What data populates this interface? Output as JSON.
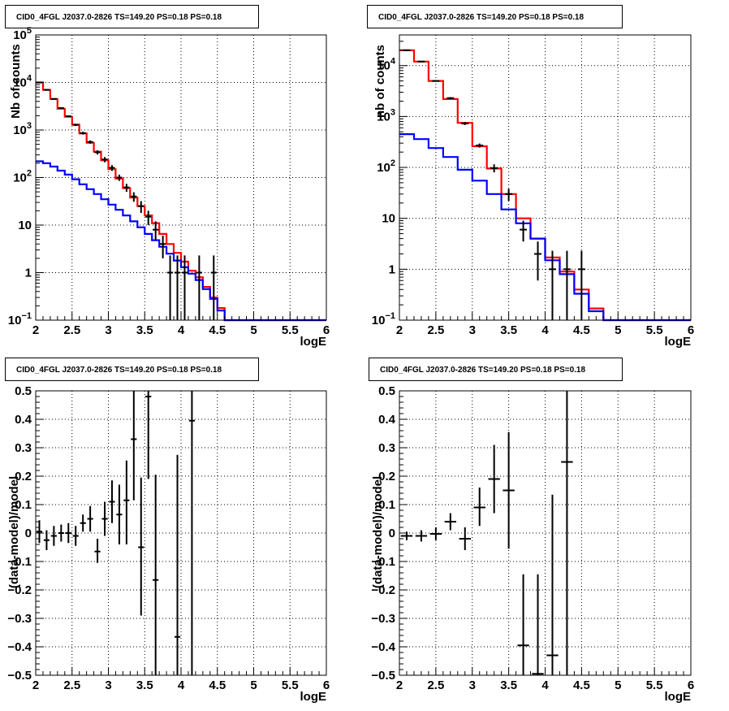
{
  "chart_data": [
    {
      "type": "histogram",
      "title": "CID0_4FGL J2037.0-2826 TS=149.20 PS=0.18 PS=0.18",
      "xlabel": "logE",
      "ylabel": "Nb of counts",
      "xlim": [
        2,
        6
      ],
      "ylim": [
        0.1,
        100000
      ],
      "yscale": "log",
      "grid": true,
      "x_ticks": [
        "2",
        "2.5",
        "3",
        "3.5",
        "4",
        "4.5",
        "5",
        "5.5",
        "6"
      ],
      "y_ticks": [
        {
          "v": 0.1,
          "base": "10",
          "exp": "−1"
        },
        {
          "v": 1,
          "label": "1"
        },
        {
          "v": 10,
          "label": "10"
        },
        {
          "v": 100,
          "base": "10",
          "exp": "2"
        },
        {
          "v": 1000,
          "base": "10",
          "exp": "3"
        },
        {
          "v": 10000,
          "base": "10",
          "exp": "4"
        },
        {
          "v": 100000,
          "base": "10",
          "exp": "5"
        }
      ],
      "bin_edges": [
        2.0,
        2.1,
        2.2,
        2.3,
        2.4,
        2.5,
        2.6,
        2.7,
        2.8,
        2.9,
        3.0,
        3.1,
        3.2,
        3.3,
        3.4,
        3.5,
        3.6,
        3.7,
        3.8,
        3.9,
        4.0,
        4.1,
        4.2,
        4.3,
        4.4,
        4.5,
        4.6,
        4.7,
        4.8,
        4.9,
        5.0,
        5.1,
        5.2,
        5.3,
        5.4,
        5.5,
        5.6,
        5.7,
        5.8,
        5.9,
        6.0
      ],
      "series": [
        {
          "color": "#ff0000",
          "values": [
            10000,
            7000,
            4500,
            2800,
            1900,
            1300,
            850,
            540,
            350,
            230,
            150,
            95,
            60,
            38,
            25,
            16,
            11,
            6.5,
            4.0,
            2.6,
            1.7,
            1.1,
            0.8,
            0.5,
            0.3,
            0.18,
            0.1,
            0.1,
            0.1,
            0.1,
            0.1,
            0.1,
            0.1,
            0.1,
            0.1,
            0.1,
            0.1,
            0.1,
            0.1,
            0.1
          ]
        },
        {
          "color": "#0000ff",
          "values": [
            220,
            200,
            170,
            140,
            115,
            92,
            72,
            57,
            45,
            35,
            27,
            21,
            16,
            12,
            9.0,
            6.5,
            4.8,
            3.5,
            2.5,
            1.8,
            1.3,
            0.95,
            0.7,
            0.45,
            0.28,
            0.16,
            0.1,
            0.1,
            0.1,
            0.1,
            0.1,
            0.1,
            0.1,
            0.1,
            0.1,
            0.1,
            0.1,
            0.1,
            0.1,
            0.1
          ]
        }
      ],
      "points": [
        {
          "x": 2.05,
          "y": 10000,
          "lo": 9800,
          "hi": 10200
        },
        {
          "x": 2.15,
          "y": 7000,
          "lo": 6850,
          "hi": 7150
        },
        {
          "x": 2.25,
          "y": 4500,
          "lo": 4380,
          "hi": 4620
        },
        {
          "x": 2.35,
          "y": 2900,
          "lo": 2800,
          "hi": 3000
        },
        {
          "x": 2.45,
          "y": 1950,
          "lo": 1870,
          "hi": 2030
        },
        {
          "x": 2.55,
          "y": 1280,
          "lo": 1210,
          "hi": 1350
        },
        {
          "x": 2.65,
          "y": 860,
          "lo": 800,
          "hi": 920
        },
        {
          "x": 2.75,
          "y": 560,
          "lo": 515,
          "hi": 605
        },
        {
          "x": 2.85,
          "y": 340,
          "lo": 305,
          "hi": 375
        },
        {
          "x": 2.95,
          "y": 240,
          "lo": 210,
          "hi": 270
        },
        {
          "x": 3.05,
          "y": 160,
          "lo": 138,
          "hi": 182
        },
        {
          "x": 3.15,
          "y": 100,
          "lo": 85,
          "hi": 115
        },
        {
          "x": 3.25,
          "y": 62,
          "lo": 50,
          "hi": 74
        },
        {
          "x": 3.35,
          "y": 40,
          "lo": 31,
          "hi": 49
        },
        {
          "x": 3.45,
          "y": 25,
          "lo": 18,
          "hi": 32
        },
        {
          "x": 3.55,
          "y": 15,
          "lo": 10,
          "hi": 20
        },
        {
          "x": 3.65,
          "y": 8,
          "lo": 5,
          "hi": 12
        },
        {
          "x": 3.75,
          "y": 4,
          "lo": 2,
          "hi": 6
        },
        {
          "x": 3.85,
          "y": 1,
          "lo": 0.1,
          "hi": 2.3
        },
        {
          "x": 3.95,
          "y": 1,
          "lo": 0.1,
          "hi": 2.3
        },
        {
          "x": 4.05,
          "y": 1,
          "lo": 0.1,
          "hi": 2.3
        },
        {
          "x": 4.25,
          "y": 1,
          "lo": 0.1,
          "hi": 2.3
        },
        {
          "x": 4.45,
          "y": 1,
          "lo": 0.1,
          "hi": 2.3
        }
      ]
    },
    {
      "type": "histogram",
      "title": "CID0_4FGL J2037.0-2826 TS=149.20 PS=0.18 PS=0.18",
      "xlabel": "logE",
      "ylabel": "nb of counts",
      "xlim": [
        2,
        6
      ],
      "ylim": [
        0.1,
        40000
      ],
      "yscale": "log",
      "grid": true,
      "x_ticks": [
        "2",
        "2.5",
        "3",
        "3.5",
        "4",
        "4.5",
        "5",
        "5.5",
        "6"
      ],
      "y_ticks": [
        {
          "v": 0.1,
          "base": "10",
          "exp": "−1"
        },
        {
          "v": 1,
          "label": "1"
        },
        {
          "v": 10,
          "label": "10"
        },
        {
          "v": 100,
          "base": "10",
          "exp": "2"
        },
        {
          "v": 1000,
          "base": "10",
          "exp": "3"
        },
        {
          "v": 10000,
          "base": "10",
          "exp": "4"
        }
      ],
      "bin_edges": [
        2.0,
        2.2,
        2.4,
        2.6,
        2.8,
        3.0,
        3.2,
        3.4,
        3.6,
        3.8,
        4.0,
        4.2,
        4.4,
        4.6,
        4.8,
        5.0,
        5.2,
        5.4,
        5.6,
        5.8,
        6.0
      ],
      "series": [
        {
          "color": "#ff0000",
          "values": [
            20000,
            12000,
            5000,
            2200,
            750,
            260,
            95,
            30,
            10,
            4.0,
            1.7,
            0.9,
            0.4,
            0.17,
            0.1,
            0.1,
            0.1,
            0.1,
            0.1,
            0.1
          ]
        },
        {
          "color": "#0000ff",
          "values": [
            450,
            360,
            240,
            160,
            90,
            55,
            30,
            15,
            8.0,
            4.0,
            1.5,
            0.8,
            0.33,
            0.15,
            0.1,
            0.1,
            0.1,
            0.1,
            0.1,
            0.1
          ]
        }
      ],
      "points": [
        {
          "x": 2.1,
          "y": 20000,
          "lo": 19600,
          "hi": 20400
        },
        {
          "x": 2.3,
          "y": 12000,
          "lo": 11700,
          "hi": 12300
        },
        {
          "x": 2.5,
          "y": 5000,
          "lo": 4860,
          "hi": 5140
        },
        {
          "x": 2.7,
          "y": 2300,
          "lo": 2200,
          "hi": 2400
        },
        {
          "x": 2.9,
          "y": 730,
          "lo": 680,
          "hi": 780
        },
        {
          "x": 3.1,
          "y": 270,
          "lo": 245,
          "hi": 295
        },
        {
          "x": 3.3,
          "y": 97,
          "lo": 80,
          "hi": 115
        },
        {
          "x": 3.5,
          "y": 30,
          "lo": 22,
          "hi": 38
        },
        {
          "x": 3.7,
          "y": 6,
          "lo": 3.5,
          "hi": 9
        },
        {
          "x": 3.9,
          "y": 2,
          "lo": 0.6,
          "hi": 3.5
        },
        {
          "x": 4.1,
          "y": 1,
          "lo": 0.1,
          "hi": 2.3
        },
        {
          "x": 4.3,
          "y": 1,
          "lo": 0.1,
          "hi": 2.3
        },
        {
          "x": 4.5,
          "y": 1,
          "lo": 0.1,
          "hi": 2.3
        }
      ]
    },
    {
      "type": "scatter",
      "title": "CID0_4FGL J2037.0-2826 TS=149.20 PS=0.18 PS=0.18",
      "xlabel": "logE",
      "ylabel": "(data-model)/model",
      "xlim": [
        2,
        6
      ],
      "ylim": [
        -0.5,
        0.5
      ],
      "grid": true,
      "x_ticks": [
        "2",
        "2.5",
        "3",
        "3.5",
        "4",
        "4.5",
        "5",
        "5.5",
        "6"
      ],
      "y_ticks": [
        {
          "v": -0.5,
          "label": "−0.5"
        },
        {
          "v": -0.4,
          "label": "−0.4"
        },
        {
          "v": -0.3,
          "label": "−0.3"
        },
        {
          "v": -0.2,
          "label": "−0.2"
        },
        {
          "v": -0.1,
          "label": "−0.1"
        },
        {
          "v": 0,
          "label": "0"
        },
        {
          "v": 0.1,
          "label": "0.1"
        },
        {
          "v": 0.2,
          "label": "0.2"
        },
        {
          "v": 0.3,
          "label": "0.3"
        },
        {
          "v": 0.4,
          "label": "0.4"
        },
        {
          "v": 0.5,
          "label": "0.5"
        }
      ],
      "xhalf": 0.05,
      "points": [
        {
          "x": 2.05,
          "y": 0.005,
          "lo": -0.035,
          "hi": 0.045
        },
        {
          "x": 2.15,
          "y": -0.025,
          "lo": -0.06,
          "hi": 0.01
        },
        {
          "x": 2.25,
          "y": -0.01,
          "lo": -0.045,
          "hi": 0.025
        },
        {
          "x": 2.35,
          "y": 0.0,
          "lo": -0.03,
          "hi": 0.03
        },
        {
          "x": 2.45,
          "y": 0.0,
          "lo": -0.035,
          "hi": 0.035
        },
        {
          "x": 2.55,
          "y": -0.01,
          "lo": -0.045,
          "hi": 0.025
        },
        {
          "x": 2.65,
          "y": 0.035,
          "lo": 0.005,
          "hi": 0.065
        },
        {
          "x": 2.75,
          "y": 0.05,
          "lo": 0.005,
          "hi": 0.095
        },
        {
          "x": 2.85,
          "y": -0.065,
          "lo": -0.105,
          "hi": -0.02
        },
        {
          "x": 2.95,
          "y": 0.05,
          "lo": -0.01,
          "hi": 0.11
        },
        {
          "x": 3.05,
          "y": 0.11,
          "lo": 0.035,
          "hi": 0.185
        },
        {
          "x": 3.15,
          "y": 0.065,
          "lo": -0.04,
          "hi": 0.17
        },
        {
          "x": 3.25,
          "y": 0.115,
          "lo": -0.04,
          "hi": 0.255
        },
        {
          "x": 3.35,
          "y": 0.33,
          "lo": 0.115,
          "hi": 0.5
        },
        {
          "x": 3.45,
          "y": -0.05,
          "lo": -0.29,
          "hi": 0.195
        },
        {
          "x": 3.55,
          "y": 0.48,
          "lo": 0.19,
          "hi": 0.5
        },
        {
          "x": 3.65,
          "y": -0.165,
          "lo": -0.5,
          "hi": 0.205
        },
        {
          "x": 3.95,
          "y": -0.365,
          "lo": -0.5,
          "hi": 0.275
        },
        {
          "x": 4.15,
          "y": 0.395,
          "lo": -0.5,
          "hi": 0.5
        }
      ]
    },
    {
      "type": "scatter",
      "title": "CID0_4FGL J2037.0-2826 TS=149.20 PS=0.18 PS=0.18",
      "xlabel": "logE",
      "ylabel": "(data-model)/model",
      "xlim": [
        2,
        6
      ],
      "ylim": [
        -0.5,
        0.5
      ],
      "grid": true,
      "x_ticks": [
        "2",
        "2.5",
        "3",
        "3.5",
        "4",
        "4.5",
        "5",
        "5.5",
        "6"
      ],
      "y_ticks": [
        {
          "v": -0.5,
          "label": "−0.5"
        },
        {
          "v": -0.4,
          "label": "−0.4"
        },
        {
          "v": -0.3,
          "label": "−0.3"
        },
        {
          "v": -0.2,
          "label": "−0.2"
        },
        {
          "v": -0.1,
          "label": "−0.1"
        },
        {
          "v": 0,
          "label": "0"
        },
        {
          "v": 0.1,
          "label": "0.1"
        },
        {
          "v": 0.2,
          "label": "0.2"
        },
        {
          "v": 0.3,
          "label": "0.3"
        },
        {
          "v": 0.4,
          "label": "0.4"
        },
        {
          "v": 0.5,
          "label": "0.5"
        }
      ],
      "xhalf": 0.1,
      "points": [
        {
          "x": 2.1,
          "y": -0.01,
          "lo": -0.025,
          "hi": 0.005
        },
        {
          "x": 2.3,
          "y": -0.01,
          "lo": -0.03,
          "hi": 0.01
        },
        {
          "x": 2.5,
          "y": -0.003,
          "lo": -0.025,
          "hi": 0.02
        },
        {
          "x": 2.7,
          "y": 0.04,
          "lo": 0.01,
          "hi": 0.07
        },
        {
          "x": 2.9,
          "y": -0.02,
          "lo": -0.06,
          "hi": 0.02
        },
        {
          "x": 3.1,
          "y": 0.09,
          "lo": 0.025,
          "hi": 0.16
        },
        {
          "x": 3.3,
          "y": 0.19,
          "lo": 0.07,
          "hi": 0.31
        },
        {
          "x": 3.5,
          "y": 0.15,
          "lo": -0.055,
          "hi": 0.355
        },
        {
          "x": 3.7,
          "y": -0.395,
          "lo": -0.5,
          "hi": -0.145
        },
        {
          "x": 3.9,
          "y": -0.495,
          "lo": -0.5,
          "hi": -0.145
        },
        {
          "x": 4.1,
          "y": -0.43,
          "lo": -0.5,
          "hi": 0.135
        },
        {
          "x": 4.3,
          "y": 0.25,
          "lo": -0.5,
          "hi": 0.5
        }
      ]
    }
  ]
}
